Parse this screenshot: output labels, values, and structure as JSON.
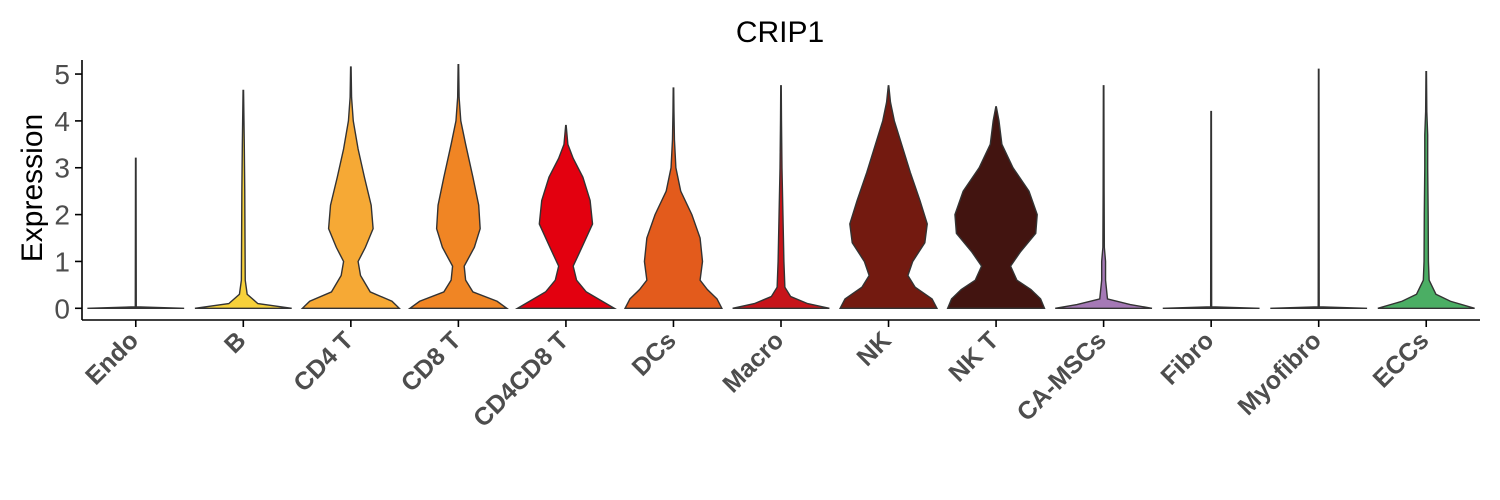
{
  "chart_data": {
    "type": "violin",
    "title": "CRIP1",
    "xlabel": "",
    "ylabel": "Expression",
    "ylim": [
      -0.25,
      5.3
    ],
    "yticks": [
      0,
      1,
      2,
      3,
      4,
      5
    ],
    "grid": false,
    "legend": "none",
    "categories": [
      "Endo",
      "B",
      "CD4 T",
      "CD8 T",
      "CD4CD8 T",
      "DCs",
      "Macro",
      "NK",
      "NK T",
      "CA-MSCs",
      "Fibro",
      "Myofibro",
      "ECCs"
    ],
    "series": [
      {
        "category": "Endo",
        "color": "#9fa5a5",
        "max": 3.2,
        "density": [
          [
            0,
            1.0
          ],
          [
            0.03,
            0.01
          ],
          [
            3.2,
            0.005
          ]
        ]
      },
      {
        "category": "B",
        "color": "#f7d13a",
        "max": 4.65,
        "density": [
          [
            0,
            1.0
          ],
          [
            0.1,
            0.3
          ],
          [
            0.3,
            0.08
          ],
          [
            0.6,
            0.04
          ],
          [
            1.5,
            0.035
          ],
          [
            2.5,
            0.03
          ],
          [
            3.5,
            0.02
          ],
          [
            4.65,
            0.005
          ]
        ]
      },
      {
        "category": "CD4 T",
        "color": "#f6a935",
        "max": 5.15,
        "density": [
          [
            0,
            1.0
          ],
          [
            0.15,
            0.85
          ],
          [
            0.35,
            0.4
          ],
          [
            0.7,
            0.2
          ],
          [
            1.0,
            0.15
          ],
          [
            1.3,
            0.3
          ],
          [
            1.7,
            0.46
          ],
          [
            2.2,
            0.42
          ],
          [
            2.8,
            0.28
          ],
          [
            3.4,
            0.15
          ],
          [
            4.0,
            0.05
          ],
          [
            4.5,
            0.015
          ],
          [
            5.15,
            0.005
          ]
        ]
      },
      {
        "category": "CD8 T",
        "color": "#f08524",
        "max": 5.2,
        "density": [
          [
            0,
            1.0
          ],
          [
            0.15,
            0.8
          ],
          [
            0.35,
            0.3
          ],
          [
            0.6,
            0.15
          ],
          [
            0.9,
            0.12
          ],
          [
            1.3,
            0.33
          ],
          [
            1.7,
            0.45
          ],
          [
            2.2,
            0.42
          ],
          [
            2.8,
            0.3
          ],
          [
            3.5,
            0.15
          ],
          [
            4.0,
            0.05
          ],
          [
            4.5,
            0.015
          ],
          [
            5.2,
            0.005
          ]
        ]
      },
      {
        "category": "CD4CD8 T",
        "color": "#e3000f",
        "max": 3.9,
        "density": [
          [
            0,
            1.0
          ],
          [
            0.15,
            0.75
          ],
          [
            0.35,
            0.42
          ],
          [
            0.6,
            0.22
          ],
          [
            0.9,
            0.15
          ],
          [
            1.3,
            0.33
          ],
          [
            1.8,
            0.55
          ],
          [
            2.3,
            0.5
          ],
          [
            2.8,
            0.35
          ],
          [
            3.2,
            0.15
          ],
          [
            3.5,
            0.04
          ],
          [
            3.9,
            0.005
          ]
        ]
      },
      {
        "category": "DCs",
        "color": "#e35b1c",
        "max": 4.7,
        "density": [
          [
            0,
            1.0
          ],
          [
            0.2,
            0.9
          ],
          [
            0.4,
            0.7
          ],
          [
            0.6,
            0.55
          ],
          [
            1.0,
            0.6
          ],
          [
            1.5,
            0.55
          ],
          [
            2.0,
            0.38
          ],
          [
            2.5,
            0.15
          ],
          [
            3.0,
            0.05
          ],
          [
            3.6,
            0.02
          ],
          [
            4.2,
            0.01
          ],
          [
            4.7,
            0.005
          ]
        ]
      },
      {
        "category": "Macro",
        "color": "#c7141a",
        "max": 4.75,
        "density": [
          [
            0,
            1.0
          ],
          [
            0.1,
            0.55
          ],
          [
            0.25,
            0.2
          ],
          [
            0.45,
            0.08
          ],
          [
            1.0,
            0.06
          ],
          [
            2.0,
            0.04
          ],
          [
            3.0,
            0.02
          ],
          [
            4.0,
            0.01
          ],
          [
            4.75,
            0.005
          ]
        ]
      },
      {
        "category": "NK",
        "color": "#731a10",
        "max": 4.75,
        "density": [
          [
            0,
            1.0
          ],
          [
            0.2,
            0.9
          ],
          [
            0.45,
            0.55
          ],
          [
            0.7,
            0.4
          ],
          [
            1.0,
            0.5
          ],
          [
            1.4,
            0.75
          ],
          [
            1.8,
            0.8
          ],
          [
            2.3,
            0.65
          ],
          [
            2.9,
            0.45
          ],
          [
            3.5,
            0.27
          ],
          [
            4.0,
            0.12
          ],
          [
            4.4,
            0.04
          ],
          [
            4.75,
            0.005
          ]
        ]
      },
      {
        "category": "NK T",
        "color": "#421410",
        "max": 4.3,
        "density": [
          [
            0,
            1.0
          ],
          [
            0.2,
            0.92
          ],
          [
            0.4,
            0.72
          ],
          [
            0.6,
            0.43
          ],
          [
            0.9,
            0.3
          ],
          [
            1.2,
            0.5
          ],
          [
            1.6,
            0.82
          ],
          [
            2.0,
            0.85
          ],
          [
            2.5,
            0.68
          ],
          [
            3.0,
            0.35
          ],
          [
            3.5,
            0.12
          ],
          [
            4.0,
            0.06
          ],
          [
            4.3,
            0.005
          ]
        ]
      },
      {
        "category": "CA-MSCs",
        "color": "#a579b6",
        "max": 4.75,
        "density": [
          [
            0,
            1.0
          ],
          [
            0.08,
            0.55
          ],
          [
            0.2,
            0.08
          ],
          [
            0.6,
            0.04
          ],
          [
            1.0,
            0.04
          ],
          [
            1.3,
            0.015
          ],
          [
            2.5,
            0.01
          ],
          [
            4.75,
            0.005
          ]
        ]
      },
      {
        "category": "Fibro",
        "color": "#9fa5a5",
        "max": 4.2,
        "density": [
          [
            0,
            1.0
          ],
          [
            0.03,
            0.01
          ],
          [
            4.2,
            0.005
          ]
        ]
      },
      {
        "category": "Myofibro",
        "color": "#9fa5a5",
        "max": 5.1,
        "density": [
          [
            0,
            1.0
          ],
          [
            0.03,
            0.01
          ],
          [
            5.1,
            0.005
          ]
        ]
      },
      {
        "category": "ECCs",
        "color": "#4bae64",
        "max": 5.05,
        "density": [
          [
            0,
            1.0
          ],
          [
            0.15,
            0.5
          ],
          [
            0.3,
            0.2
          ],
          [
            0.6,
            0.06
          ],
          [
            1.0,
            0.045
          ],
          [
            2.0,
            0.04
          ],
          [
            3.0,
            0.03
          ],
          [
            3.7,
            0.03
          ],
          [
            4.2,
            0.012
          ],
          [
            5.05,
            0.005
          ]
        ]
      }
    ]
  }
}
